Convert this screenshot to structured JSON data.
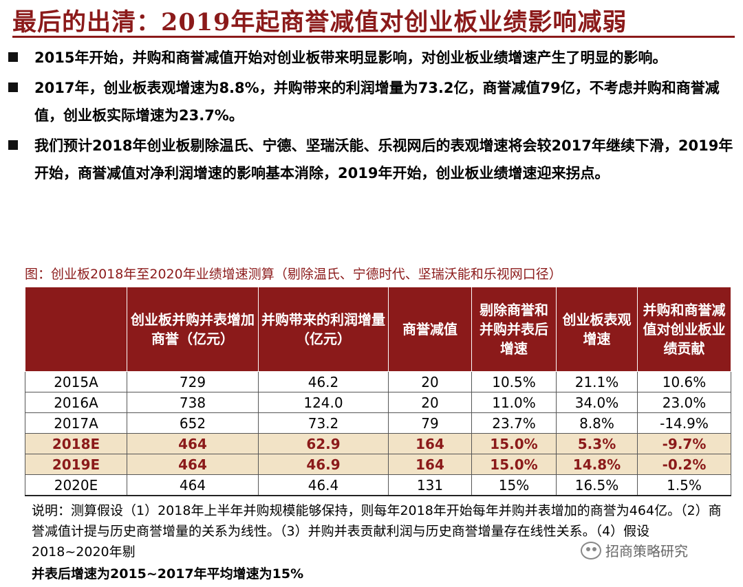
{
  "title": "最后的出清：2019年起商誉减值对创业板业绩影响减弱",
  "bullets": [
    "2015年开始，并购和商誉减值开始对创业板带来明显影响，对创业板业绩增速产生了明显的影响。",
    "2017年，创业板表观增速为8.8%，并购带来的利润增量为73.2亿，商誉减值79亿，不考虑并购和商誉减值，创业板实际增速为23.7%。",
    "我们预计2018年创业板剔除温氏、宁德、坚瑞沃能、乐视网后的表观增速将会较2017年继续下滑，2019年开始，商誉减值对净利润增速的影响基本消除，2019年开始，创业板业绩增速迎来拐点。"
  ],
  "table_caption": "图：创业板2018年至2020年业绩增速测算（剔除温氏、宁德时代、坚瑞沃能和乐视网口径）",
  "table": {
    "headers": [
      "",
      "创业板并购并表增加商誉（亿元）",
      "并购带来的利润增量（亿元）",
      "商誉减值",
      "剔除商誉和并购并表后增速",
      "创业板表观增速",
      "并购和商誉减值对创业板业绩贡献"
    ],
    "rows": [
      {
        "cells": [
          "2015A",
          "729",
          "46.2",
          "20",
          "10.5%",
          "21.1%",
          "10.6%"
        ],
        "highlight": false
      },
      {
        "cells": [
          "2016A",
          "738",
          "124.0",
          "20",
          "11.0%",
          "34.0%",
          "23.0%"
        ],
        "highlight": false
      },
      {
        "cells": [
          "2017A",
          "652",
          "73.2",
          "79",
          "23.7%",
          "8.8%",
          "-14.9%"
        ],
        "highlight": false
      },
      {
        "cells": [
          "2018E",
          "464",
          "62.9",
          "164",
          "15.0%",
          "5.3%",
          "-9.7%"
        ],
        "highlight": true
      },
      {
        "cells": [
          "2019E",
          "464",
          "46.9",
          "164",
          "15.0%",
          "14.8%",
          "-0.2%"
        ],
        "highlight": true
      },
      {
        "cells": [
          "2020E",
          "464",
          "46.4",
          "131",
          "15%",
          "16.5%",
          "1.5%"
        ],
        "highlight": false
      }
    ]
  },
  "note": "说明：测算假设（1）2018年上半年并购规模能够保持，则每年2018年开始每年并购并表增加的商誉为464亿。（2）商誉减值计提与历史商誉增量的关系为线性。（3）并购并表贡献利润与历史商誉增量存在线性关系。（4）假设2018~2020年剔",
  "note_last": "并表后增速为2015~2017年平均增速为15%",
  "watermark": "招商策略研究"
}
